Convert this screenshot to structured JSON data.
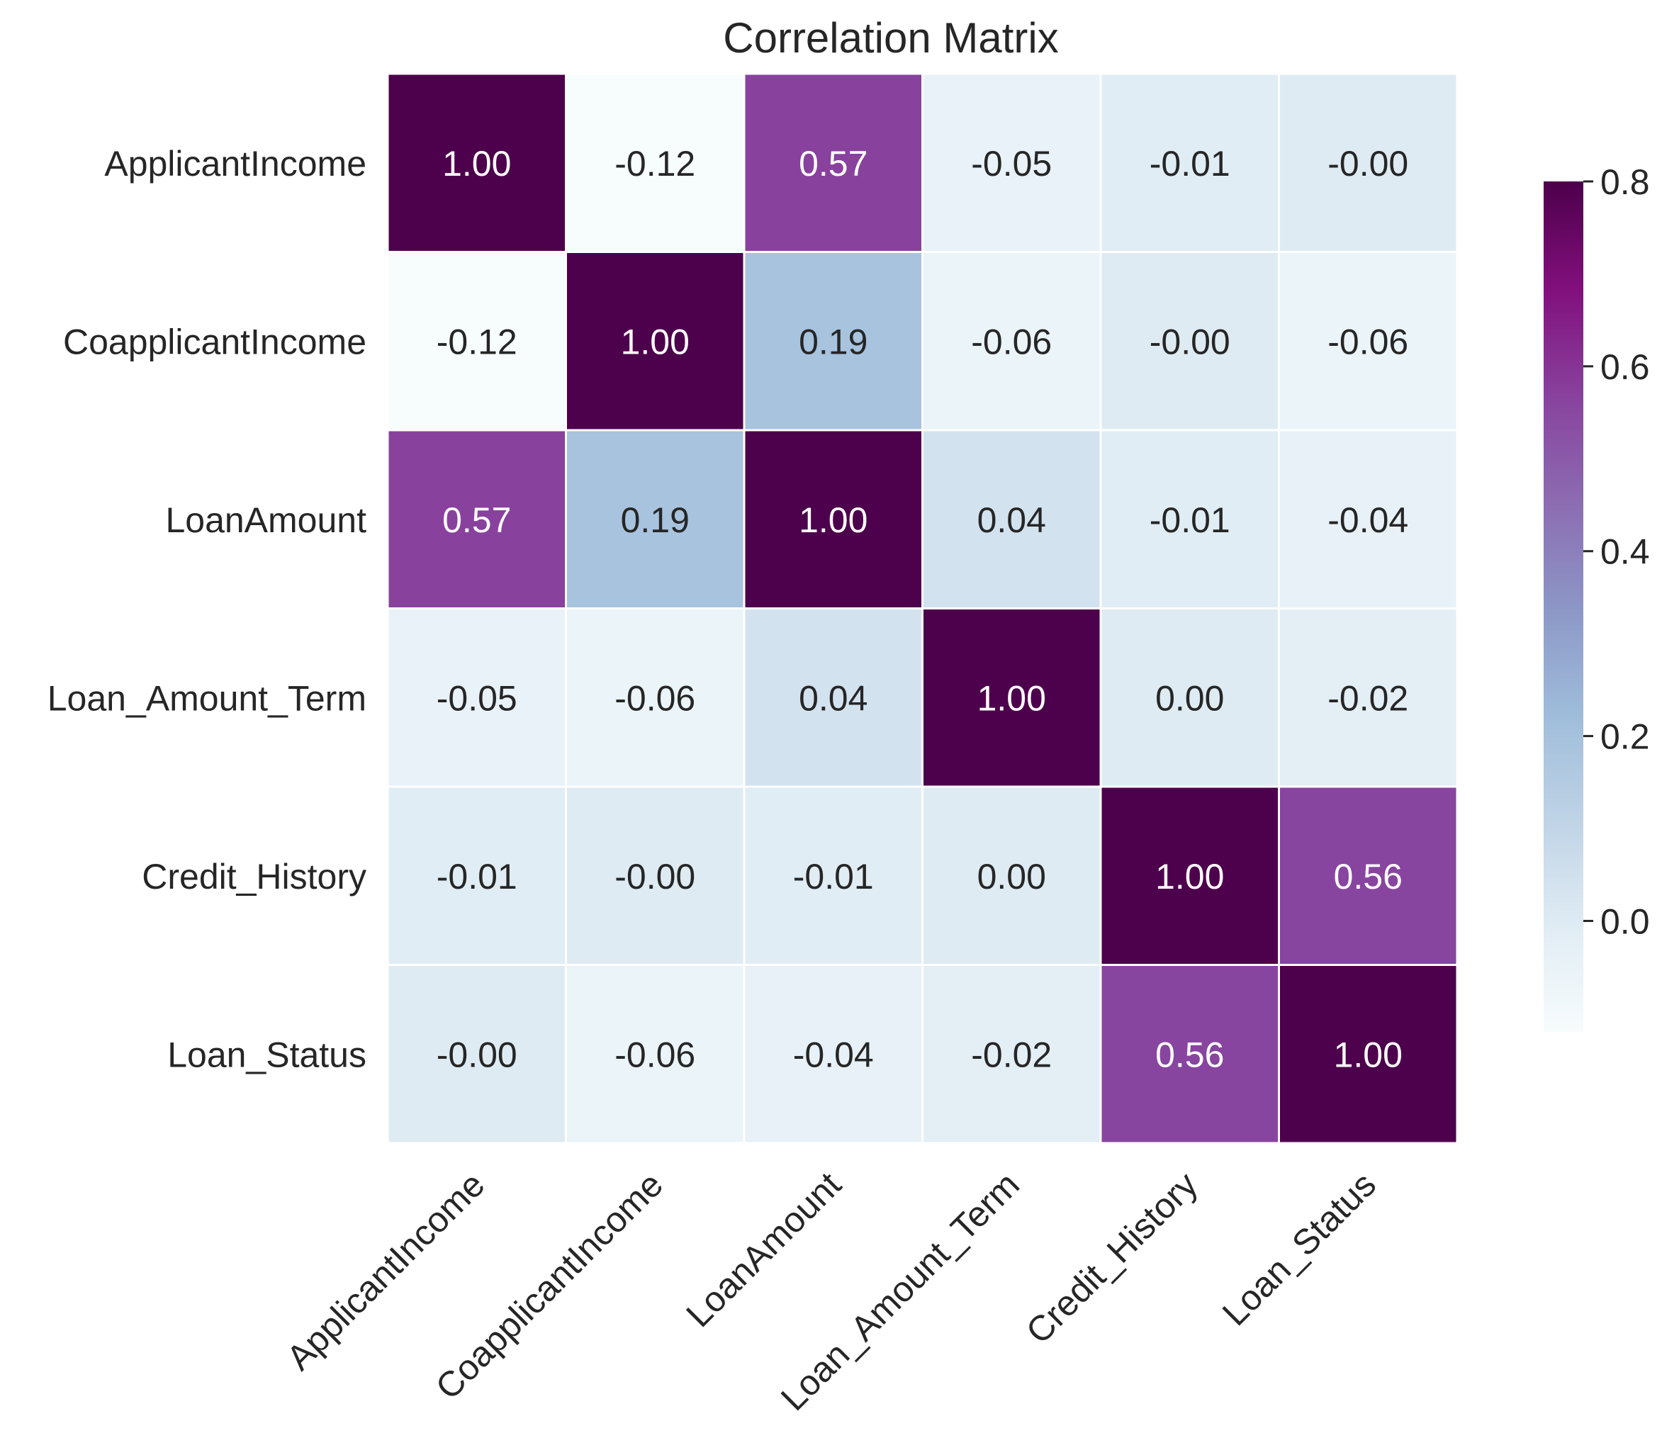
{
  "chart_data": {
    "type": "heatmap",
    "title": "Correlation Matrix",
    "xlabel": "",
    "ylabel": "",
    "labels": [
      "ApplicantIncome",
      "CoapplicantIncome",
      "LoanAmount",
      "Loan_Amount_Term",
      "Credit_History",
      "Loan_Status"
    ],
    "values": [
      [
        1.0,
        -0.12,
        0.57,
        -0.05,
        -0.01,
        -0.0
      ],
      [
        -0.12,
        1.0,
        0.19,
        -0.06,
        -0.0,
        -0.06
      ],
      [
        0.57,
        0.19,
        1.0,
        0.04,
        -0.01,
        -0.04
      ],
      [
        -0.05,
        -0.06,
        0.04,
        1.0,
        0.0,
        -0.02
      ],
      [
        -0.01,
        -0.0,
        -0.01,
        0.0,
        1.0,
        0.56
      ],
      [
        -0.0,
        -0.06,
        -0.04,
        -0.02,
        0.56,
        1.0
      ]
    ],
    "cell_labels": [
      [
        "1.00",
        "-0.12",
        "0.57",
        "-0.05",
        "-0.01",
        "-0.00"
      ],
      [
        "-0.12",
        "1.00",
        "0.19",
        "-0.06",
        "-0.00",
        "-0.06"
      ],
      [
        "0.57",
        "0.19",
        "1.00",
        "0.04",
        "-0.01",
        "-0.04"
      ],
      [
        "-0.05",
        "-0.06",
        "0.04",
        "1.00",
        "0.00",
        "-0.02"
      ],
      [
        "-0.01",
        "-0.00",
        "-0.01",
        "0.00",
        "1.00",
        "0.56"
      ],
      [
        "-0.00",
        "-0.06",
        "-0.04",
        "-0.02",
        "0.56",
        "1.00"
      ]
    ],
    "colorbar": {
      "colormap": "BuPu",
      "vmin": -0.12,
      "vmax": 0.8,
      "ticks": [
        0.0,
        0.2,
        0.4,
        0.6,
        0.8
      ],
      "tick_labels": [
        "0.0",
        "0.2",
        "0.4",
        "0.6",
        "0.8"
      ],
      "placement": "right"
    },
    "colors": {
      "stops": [
        "#f7fcfd",
        "#e0ecf4",
        "#bfd3e6",
        "#9ebcda",
        "#8c96c6",
        "#8c6bb1",
        "#88419d",
        "#810f7c",
        "#4d004b"
      ],
      "cell_border": "#ffffff",
      "text_dark": "#262626",
      "text_light": "#ffffff"
    }
  }
}
